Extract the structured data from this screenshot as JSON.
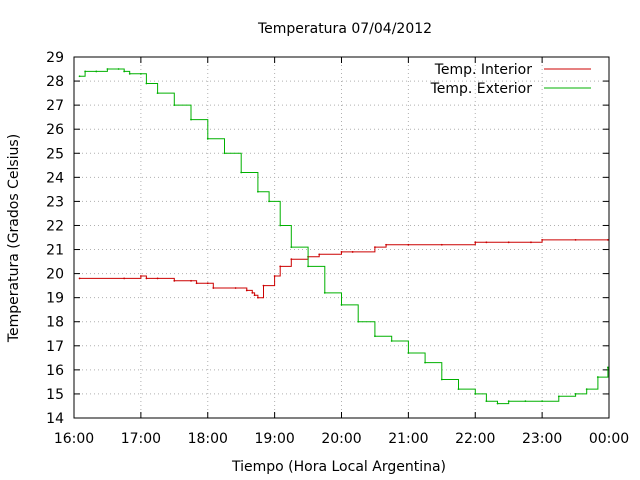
{
  "chart_data": {
    "type": "line",
    "title": "Temperatura 07/04/2012",
    "xlabel": "Tiempo (Hora Local Argentina)",
    "ylabel": "Temperatura (Grados Celsius)",
    "xlim": [
      "16:00",
      "00:00"
    ],
    "ylim": [
      14,
      29
    ],
    "grid": true,
    "legend_position": "top-right",
    "x_ticks": [
      "16:00",
      "17:00",
      "18:00",
      "19:00",
      "20:00",
      "21:00",
      "22:00",
      "23:00",
      "00:00"
    ],
    "y_ticks": [
      14,
      15,
      16,
      17,
      18,
      19,
      20,
      21,
      22,
      23,
      24,
      25,
      26,
      27,
      28,
      29
    ],
    "series": [
      {
        "name": "Temp. Interior",
        "color": "#cc0000",
        "x": [
          "16:05",
          "16:45",
          "17:00",
          "17:05",
          "17:15",
          "17:30",
          "17:45",
          "17:50",
          "18:00",
          "18:05",
          "18:25",
          "18:35",
          "18:40",
          "18:42",
          "18:45",
          "18:50",
          "19:00",
          "19:05",
          "19:15",
          "19:30",
          "19:40",
          "20:00",
          "20:10",
          "20:30",
          "20:40",
          "21:00",
          "21:30",
          "22:00",
          "22:10",
          "22:30",
          "22:50",
          "23:00",
          "23:30",
          "23:59"
        ],
        "values": [
          19.8,
          19.8,
          19.9,
          19.8,
          19.8,
          19.7,
          19.7,
          19.6,
          19.6,
          19.4,
          19.4,
          19.3,
          19.2,
          19.1,
          19.0,
          19.5,
          19.9,
          20.3,
          20.6,
          20.7,
          20.8,
          20.9,
          20.9,
          21.1,
          21.2,
          21.2,
          21.2,
          21.3,
          21.3,
          21.3,
          21.3,
          21.4,
          21.4,
          21.4
        ]
      },
      {
        "name": "Temp. Exterior",
        "color": "#00b000",
        "x": [
          "16:05",
          "16:10",
          "16:20",
          "16:30",
          "16:40",
          "16:45",
          "16:50",
          "17:00",
          "17:05",
          "17:15",
          "17:30",
          "17:45",
          "18:00",
          "18:15",
          "18:30",
          "18:45",
          "18:55",
          "19:05",
          "19:15",
          "19:30",
          "19:45",
          "20:00",
          "20:15",
          "20:30",
          "20:45",
          "21:00",
          "21:15",
          "21:30",
          "21:45",
          "22:00",
          "22:10",
          "22:20",
          "22:30",
          "22:45",
          "23:00",
          "23:15",
          "23:30",
          "23:40",
          "23:50",
          "23:59"
        ],
        "values": [
          28.2,
          28.4,
          28.4,
          28.5,
          28.5,
          28.4,
          28.3,
          28.3,
          27.9,
          27.5,
          27.0,
          26.4,
          25.6,
          25.0,
          24.2,
          23.4,
          23.0,
          22.0,
          21.1,
          20.3,
          19.2,
          18.7,
          18.0,
          17.4,
          17.2,
          16.7,
          16.3,
          15.6,
          15.2,
          15.0,
          14.7,
          14.6,
          14.7,
          14.7,
          14.7,
          14.9,
          15.0,
          15.2,
          15.7,
          16.1
        ]
      }
    ]
  }
}
